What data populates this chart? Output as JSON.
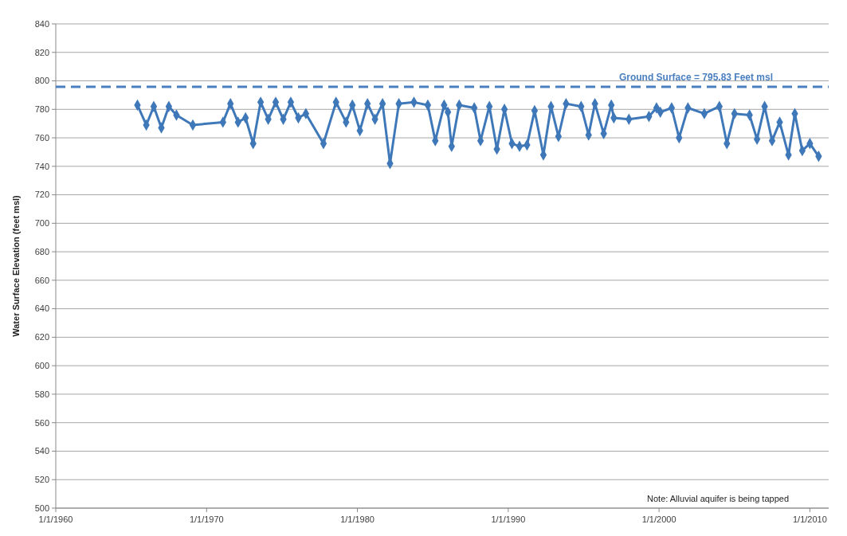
{
  "chart_data": {
    "type": "line",
    "ylabel": "Water Surface Elevation (feet msl)",
    "x": [
      "1965-06",
      "1966-01",
      "1966-07",
      "1967-01",
      "1967-07",
      "1968-01",
      "1969-02",
      "1971-02",
      "1971-08",
      "1972-02",
      "1972-08",
      "1973-02",
      "1973-08",
      "1974-02",
      "1974-08",
      "1975-02",
      "1975-08",
      "1976-02",
      "1976-08",
      "1977-10",
      "1978-08",
      "1979-04",
      "1979-09",
      "1980-03",
      "1980-09",
      "1981-03",
      "1981-09",
      "1982-03",
      "1982-10",
      "1983-10",
      "1984-09",
      "1985-03",
      "1985-10",
      "1986-01",
      "1986-04",
      "1986-10",
      "1987-10",
      "1988-03",
      "1988-10",
      "1989-04",
      "1989-10",
      "1990-04",
      "1990-10",
      "1991-04",
      "1991-10",
      "1992-05",
      "1992-11",
      "1993-05",
      "1993-11",
      "1994-11",
      "1995-05",
      "1995-10",
      "1996-05",
      "1996-11",
      "1997-01",
      "1998-01",
      "1999-05",
      "1999-11",
      "2000-02",
      "2000-11",
      "2001-05",
      "2001-12",
      "2003-01",
      "2004-01",
      "2004-07",
      "2005-01",
      "2006-01",
      "2006-07",
      "2007-01",
      "2007-07",
      "2008-01",
      "2008-08",
      "2009-01",
      "2009-07",
      "2010-01",
      "2010-08"
    ],
    "series": [
      {
        "color": "#3f78b9",
        "values": [
          783,
          769,
          782,
          767,
          782,
          776,
          769,
          771,
          784,
          771,
          774,
          756,
          785,
          773,
          785,
          773,
          785,
          774,
          777,
          756,
          785,
          771,
          783,
          765,
          784,
          773,
          784,
          742,
          784,
          785,
          783,
          758,
          783,
          778,
          754,
          783,
          781,
          758,
          782,
          752,
          780,
          756,
          754,
          755,
          779,
          748,
          782,
          761,
          784,
          782,
          762,
          784,
          763,
          783,
          774,
          773,
          775,
          781,
          778,
          781,
          760,
          781,
          777,
          782,
          756,
          777,
          776,
          759,
          782,
          758,
          771,
          748,
          777,
          751,
          756,
          747
        ]
      }
    ],
    "xlim": [
      "1960-01-01",
      "2011-04-01"
    ],
    "xticks": [
      {
        "value": "1960-01-01",
        "label": "1/1/1960"
      },
      {
        "value": "1970-01-01",
        "label": "1/1/1970"
      },
      {
        "value": "1980-01-01",
        "label": "1/1/1980"
      },
      {
        "value": "1990-01-01",
        "label": "1/1/1990"
      },
      {
        "value": "2000-01-01",
        "label": "1/1/2000"
      },
      {
        "value": "2010-01-01",
        "label": "1/1/2010"
      }
    ],
    "ylim": [
      500,
      840
    ],
    "yticks": [
      500,
      520,
      540,
      560,
      580,
      600,
      620,
      640,
      660,
      680,
      700,
      720,
      740,
      760,
      780,
      800,
      820,
      840
    ],
    "grid": "y",
    "marker": "diamond",
    "line_style": "solid",
    "ref_lines": [
      {
        "axis": "y",
        "value": 795.83,
        "label": "Ground Surface = 795.83 Feet msl",
        "color": "#4a7fc0",
        "line_style": "dashed"
      }
    ],
    "annotations": [
      "Note: Alluvial aquifer is being tapped"
    ]
  }
}
